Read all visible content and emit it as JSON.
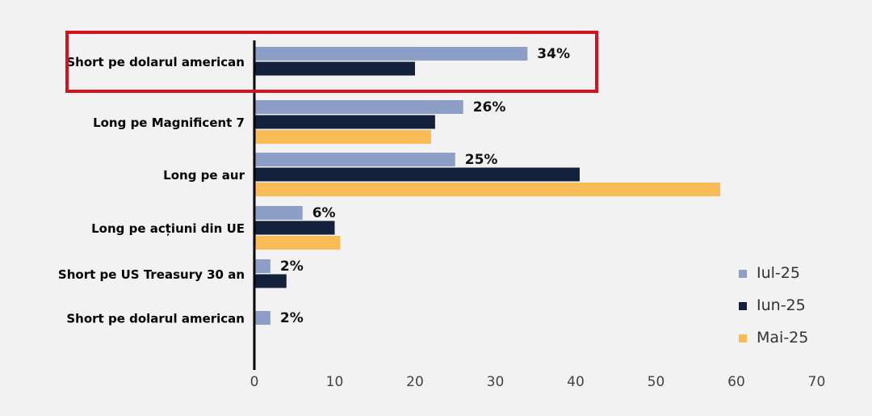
{
  "chart_data": {
    "type": "bar",
    "orientation": "horizontal",
    "categories": [
      "Short pe dolarul american",
      "Long pe Magnificent 7",
      "Long pe aur",
      "Long pe acțiuni din UE",
      "Short pe US Treasury 30 an",
      "Short pe dolarul american"
    ],
    "series": [
      {
        "name": "Iul-25",
        "color": "#8e9fc7",
        "values": [
          34,
          26,
          25,
          6,
          2,
          2
        ]
      },
      {
        "name": "Iun-25",
        "color": "#14213d",
        "values": [
          20,
          22.5,
          40.5,
          10,
          4,
          0
        ]
      },
      {
        "name": "Mai-25",
        "color": "#f9bb55",
        "values": [
          0,
          22,
          58,
          10.7,
          0,
          0
        ]
      }
    ],
    "data_labels": [
      "34%",
      "26%",
      "25%",
      "6%",
      "2%",
      "2%"
    ],
    "xlim": [
      0,
      70
    ],
    "xticks": [
      0,
      10,
      20,
      30,
      40,
      50,
      60,
      70
    ],
    "highlight": {
      "category_index": 0,
      "color": "#d7121f"
    },
    "grid": false,
    "legend_position": "right"
  }
}
